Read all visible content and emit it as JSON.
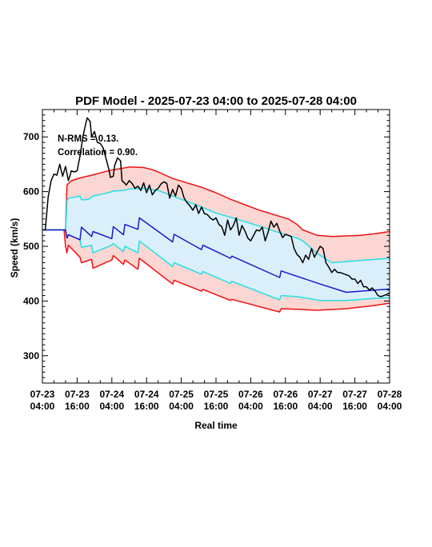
{
  "chart_data": {
    "type": "line",
    "title": "PDF Model - 2025-07-23 04:00 to 2025-07-28 04:00",
    "xlabel": "Real time",
    "ylabel": "Speed (km/s)",
    "xlim": [
      0,
      120
    ],
    "ylim": [
      250,
      750
    ],
    "y_ticks": [
      300,
      400,
      500,
      600,
      700
    ],
    "x_ticks": [
      {
        "x": 0,
        "label": [
          "07-23",
          "04:00"
        ]
      },
      {
        "x": 12,
        "label": [
          "07-23",
          "16:00"
        ]
      },
      {
        "x": 24,
        "label": [
          "07-24",
          "04:00"
        ]
      },
      {
        "x": 36,
        "label": [
          "07-24",
          "16:00"
        ]
      },
      {
        "x": 48,
        "label": [
          "07-25",
          "04:00"
        ]
      },
      {
        "x": 60,
        "label": [
          "07-25",
          "16:00"
        ]
      },
      {
        "x": 72,
        "label": [
          "07-26",
          "04:00"
        ]
      },
      {
        "x": 84,
        "label": [
          "07-26",
          "16:00"
        ]
      },
      {
        "x": 96,
        "label": [
          "07-27",
          "04:00"
        ]
      },
      {
        "x": 108,
        "label": [
          "07-27",
          "16:00"
        ]
      },
      {
        "x": 120,
        "label": [
          "07-28",
          "04:00"
        ]
      }
    ],
    "annotations": [
      "N-RMS = 0.13.",
      "Correlation = 0.90."
    ],
    "colors": {
      "observed": "#000000",
      "median": "#1a1acc",
      "inner_band": "#22e0e6",
      "outer_band": "#ee1111",
      "inner_fill": "#dbeffa",
      "outer_fill": "#fcd6d2"
    },
    "series": [
      {
        "role": "observed",
        "points": [
          [
            1,
            530
          ],
          [
            2,
            590
          ],
          [
            3,
            620
          ],
          [
            4,
            632
          ],
          [
            5,
            630
          ],
          [
            6,
            650
          ],
          [
            7,
            628
          ],
          [
            8,
            646
          ],
          [
            9,
            620
          ],
          [
            10,
            638
          ],
          [
            11,
            636
          ],
          [
            12,
            638
          ],
          [
            13,
            665
          ],
          [
            14,
            700
          ],
          [
            15,
            725
          ],
          [
            15.5,
            735
          ],
          [
            16.5,
            728
          ],
          [
            17,
            700
          ],
          [
            18,
            710
          ],
          [
            19,
            690
          ],
          [
            20,
            688
          ],
          [
            21,
            680
          ],
          [
            22,
            660
          ],
          [
            23,
            640
          ],
          [
            23.5,
            626
          ],
          [
            24.5,
            628
          ],
          [
            25,
            648
          ],
          [
            26,
            662
          ],
          [
            27,
            656
          ],
          [
            27.5,
            620
          ],
          [
            28.5,
            615
          ],
          [
            29,
            612
          ],
          [
            30,
            620
          ],
          [
            31,
            615
          ],
          [
            32,
            606
          ],
          [
            33,
            610
          ],
          [
            34,
            602
          ],
          [
            35,
            616
          ],
          [
            36,
            598
          ],
          [
            37,
            612
          ],
          [
            38,
            594
          ],
          [
            39,
            602
          ],
          [
            40,
            606
          ],
          [
            41,
            614
          ],
          [
            42,
            618
          ],
          [
            43,
            615
          ],
          [
            44,
            588
          ],
          [
            45,
            604
          ],
          [
            46,
            592
          ],
          [
            47,
            612
          ],
          [
            48,
            606
          ],
          [
            49,
            588
          ],
          [
            50,
            580
          ],
          [
            51,
            574
          ],
          [
            52,
            566
          ],
          [
            53,
            576
          ],
          [
            54,
            560
          ],
          [
            55,
            572
          ],
          [
            56,
            560
          ],
          [
            57,
            558
          ],
          [
            58,
            552
          ],
          [
            59,
            548
          ],
          [
            60,
            552
          ],
          [
            61,
            540
          ],
          [
            62,
            536
          ],
          [
            63,
            520
          ],
          [
            64,
            548
          ],
          [
            65,
            530
          ],
          [
            66,
            538
          ],
          [
            67,
            552
          ],
          [
            68,
            520
          ],
          [
            69,
            538
          ],
          [
            70,
            528
          ],
          [
            71,
            515
          ],
          [
            72,
            510
          ],
          [
            73,
            520
          ],
          [
            74,
            530
          ],
          [
            75,
            528
          ],
          [
            76,
            535
          ],
          [
            77,
            510
          ],
          [
            78,
            526
          ],
          [
            79,
            546
          ],
          [
            80,
            535
          ],
          [
            81,
            542
          ],
          [
            82,
            528
          ],
          [
            83,
            516
          ],
          [
            84,
            522
          ],
          [
            85,
            520
          ],
          [
            86,
            518
          ],
          [
            87,
            496
          ],
          [
            88,
            485
          ],
          [
            89,
            480
          ],
          [
            90,
            470
          ],
          [
            91,
            484
          ],
          [
            92,
            476
          ],
          [
            93,
            496
          ],
          [
            94,
            480
          ],
          [
            95,
            490
          ],
          [
            96,
            500
          ],
          [
            97,
            496
          ],
          [
            98,
            470
          ],
          [
            99,
            462
          ],
          [
            100,
            452
          ],
          [
            101,
            458
          ],
          [
            102,
            452
          ],
          [
            103,
            452
          ],
          [
            104,
            450
          ],
          [
            105,
            448
          ],
          [
            106,
            446
          ],
          [
            107,
            440
          ],
          [
            108,
            440
          ],
          [
            109,
            432
          ],
          [
            110,
            438
          ],
          [
            111,
            426
          ],
          [
            112,
            426
          ],
          [
            113,
            420
          ],
          [
            114,
            424
          ],
          [
            115,
            418
          ],
          [
            116,
            410
          ],
          [
            117,
            408
          ],
          [
            118,
            410
          ],
          [
            119,
            412
          ],
          [
            120,
            415
          ]
        ]
      },
      {
        "role": "median",
        "points": [
          [
            0,
            530
          ],
          [
            7.5,
            530
          ],
          [
            8,
            530
          ],
          [
            8.5,
            515
          ],
          [
            9,
            521
          ],
          [
            13,
            512
          ],
          [
            13.5,
            535
          ],
          [
            17,
            518
          ],
          [
            17.5,
            527
          ],
          [
            24,
            514
          ],
          [
            24.5,
            536
          ],
          [
            28,
            521
          ],
          [
            28.5,
            540
          ],
          [
            33,
            531
          ],
          [
            33.5,
            552
          ],
          [
            45,
            508
          ],
          [
            45.5,
            522
          ],
          [
            55,
            494
          ],
          [
            55.5,
            502
          ],
          [
            65,
            478
          ],
          [
            65.5,
            482
          ],
          [
            82,
            443
          ],
          [
            82.5,
            455
          ],
          [
            96,
            431
          ],
          [
            105,
            416
          ],
          [
            110,
            418
          ],
          [
            115,
            420
          ],
          [
            120,
            422
          ]
        ]
      },
      {
        "role": "lower_outer",
        "points": [
          [
            0,
            530
          ],
          [
            7.5,
            530
          ],
          [
            8,
            500
          ],
          [
            8.5,
            488
          ],
          [
            9,
            502
          ],
          [
            13,
            480
          ],
          [
            13.5,
            470
          ],
          [
            17,
            476
          ],
          [
            17.5,
            460
          ],
          [
            24,
            475
          ],
          [
            24.5,
            483
          ],
          [
            28,
            467
          ],
          [
            28.5,
            475
          ],
          [
            33,
            458
          ],
          [
            33.5,
            478
          ],
          [
            45,
            431
          ],
          [
            45.5,
            438
          ],
          [
            55,
            418
          ],
          [
            55.5,
            421
          ],
          [
            65,
            401
          ],
          [
            65.5,
            403
          ],
          [
            82,
            380
          ],
          [
            82.5,
            386
          ],
          [
            88,
            385
          ],
          [
            95,
            383
          ],
          [
            105,
            386
          ],
          [
            115,
            392
          ],
          [
            120,
            396
          ]
        ]
      },
      {
        "role": "lower_inner",
        "points": [
          [
            0,
            530
          ],
          [
            7.5,
            530
          ],
          [
            8,
            530
          ],
          [
            8.5,
            515
          ],
          [
            9,
            521
          ],
          [
            13,
            512
          ],
          [
            13.5,
            498
          ],
          [
            17,
            502
          ],
          [
            17.5,
            488
          ],
          [
            24,
            502
          ],
          [
            24.5,
            505
          ],
          [
            28,
            490
          ],
          [
            28.5,
            500
          ],
          [
            33,
            488
          ],
          [
            33.5,
            510
          ],
          [
            45,
            463
          ],
          [
            45.5,
            470
          ],
          [
            55,
            449
          ],
          [
            55.5,
            454
          ],
          [
            65,
            432
          ],
          [
            65.5,
            436
          ],
          [
            82,
            402
          ],
          [
            82.5,
            410
          ],
          [
            88,
            408
          ],
          [
            96,
            401
          ],
          [
            105,
            401
          ],
          [
            115,
            405
          ],
          [
            120,
            406
          ]
        ]
      },
      {
        "role": "upper_inner",
        "points": [
          [
            0,
            530
          ],
          [
            7.5,
            530
          ],
          [
            8,
            530
          ],
          [
            8.5,
            584
          ],
          [
            9,
            588
          ],
          [
            13,
            592
          ],
          [
            13.5,
            585
          ],
          [
            16,
            586
          ],
          [
            17.5,
            592
          ],
          [
            22,
            597
          ],
          [
            24.5,
            601
          ],
          [
            28,
            602
          ],
          [
            30,
            605
          ],
          [
            35,
            606
          ],
          [
            40,
            602
          ],
          [
            45,
            592
          ],
          [
            50,
            582
          ],
          [
            55,
            572
          ],
          [
            60,
            561
          ],
          [
            65,
            553
          ],
          [
            70,
            545
          ],
          [
            75,
            537
          ],
          [
            80,
            528
          ],
          [
            85,
            520
          ],
          [
            88,
            515
          ],
          [
            90,
            510
          ],
          [
            95,
            487
          ],
          [
            100,
            470
          ],
          [
            110,
            474
          ],
          [
            120,
            478
          ]
        ]
      },
      {
        "role": "upper_outer",
        "points": [
          [
            0,
            530
          ],
          [
            7.5,
            530
          ],
          [
            8,
            530
          ],
          [
            8.5,
            612
          ],
          [
            10,
            620
          ],
          [
            13,
            625
          ],
          [
            17,
            630
          ],
          [
            22,
            637
          ],
          [
            24.5,
            640
          ],
          [
            28,
            643
          ],
          [
            30,
            645
          ],
          [
            35,
            644
          ],
          [
            38,
            640
          ],
          [
            40,
            636
          ],
          [
            45,
            624
          ],
          [
            50,
            616
          ],
          [
            55,
            608
          ],
          [
            60,
            598
          ],
          [
            65,
            586
          ],
          [
            70,
            576
          ],
          [
            75,
            566
          ],
          [
            80,
            558
          ],
          [
            85,
            550
          ],
          [
            88,
            540
          ],
          [
            90,
            530
          ],
          [
            95,
            520
          ],
          [
            100,
            518
          ],
          [
            110,
            520
          ],
          [
            115,
            523
          ],
          [
            120,
            527
          ]
        ]
      }
    ]
  }
}
